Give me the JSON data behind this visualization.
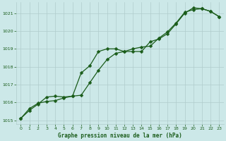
{
  "title": "Graphe pression niveau de la mer (hPa)",
  "background_color": "#cce8e8",
  "grid_color": "#b0cccc",
  "line_color": "#1a5c1a",
  "xlim": [
    -0.5,
    23.5
  ],
  "ylim": [
    1014.8,
    1021.6
  ],
  "yticks": [
    1015,
    1016,
    1017,
    1018,
    1019,
    1020,
    1021
  ],
  "xticks": [
    0,
    1,
    2,
    3,
    4,
    5,
    6,
    7,
    8,
    9,
    10,
    11,
    12,
    13,
    14,
    15,
    16,
    17,
    18,
    19,
    20,
    21,
    22,
    23
  ],
  "series1_x": [
    0,
    1,
    2,
    3,
    4,
    5,
    6,
    7,
    8,
    9,
    10,
    11,
    12,
    13,
    14,
    15,
    16,
    17,
    18,
    19,
    20,
    21,
    22,
    23
  ],
  "series1_y": [
    1015.1,
    1015.65,
    1015.95,
    1016.05,
    1016.1,
    1016.25,
    1016.35,
    1016.4,
    1017.1,
    1017.8,
    1018.4,
    1018.75,
    1018.85,
    1019.0,
    1019.1,
    1019.15,
    1019.6,
    1019.95,
    1020.45,
    1021.05,
    1021.2,
    1021.25,
    1021.1,
    1020.8
  ],
  "series2_x": [
    0,
    1,
    2,
    3,
    4,
    5,
    6,
    7,
    8,
    9,
    10,
    11,
    12,
    13,
    14,
    15,
    16,
    17,
    18,
    19,
    20,
    21,
    22,
    23
  ],
  "series2_y": [
    1015.1,
    1015.55,
    1015.9,
    1016.3,
    1016.35,
    1016.3,
    1016.35,
    1017.65,
    1018.05,
    1018.85,
    1019.0,
    1019.0,
    1018.85,
    1018.85,
    1018.85,
    1019.4,
    1019.55,
    1019.85,
    1020.4,
    1021.0,
    1021.3,
    1021.25,
    1021.1,
    1020.8
  ]
}
